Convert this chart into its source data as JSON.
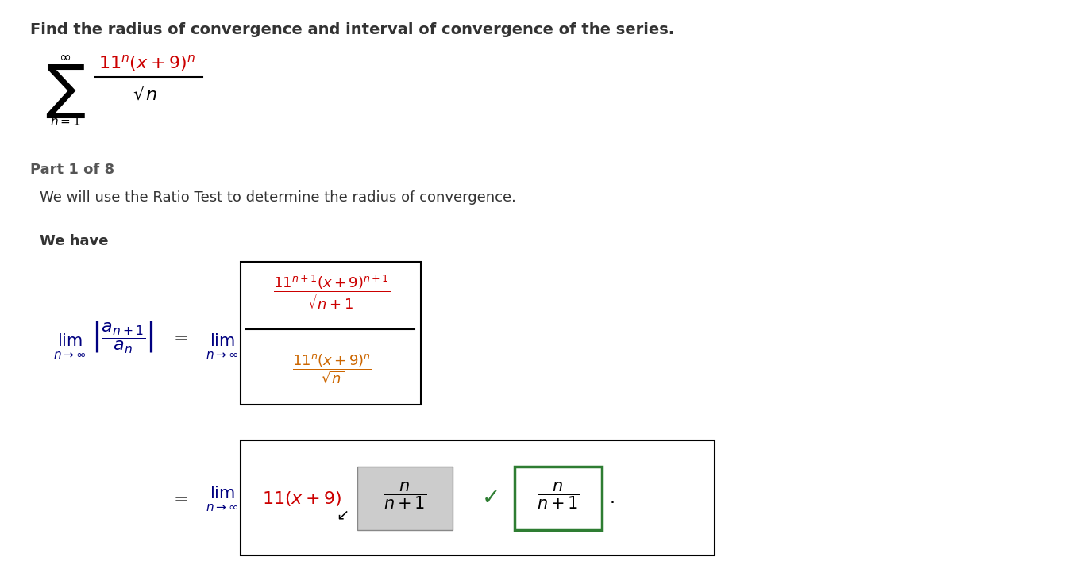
{
  "bg_color": "#ffffff",
  "title_color": "#333333",
  "red_color": "#cc0000",
  "blue_color": "#000080",
  "orange_color": "#cc6600",
  "green_color": "#2e7d32",
  "gray_color": "#cccccc",
  "part_color": "#555555",
  "title_text": "Find the radius of convergence and interval of convergence of the series.",
  "part_text": "Part 1 of 8",
  "wehave_text": "We will use the Ratio Test to determine the radius of convergence.",
  "wehave2_text": "We have"
}
